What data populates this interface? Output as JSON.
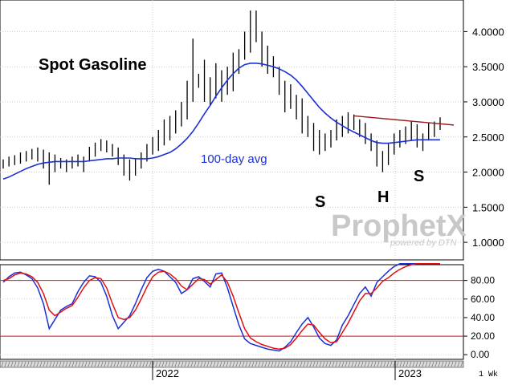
{
  "chart_data": [
    {
      "type": "candlestick",
      "title": "Spot Gasoline",
      "ylim": [
        0.75,
        4.45
      ],
      "yticks": [
        1.0,
        1.5,
        2.0,
        2.5,
        3.0,
        3.5,
        4.0
      ],
      "ytick_labels": [
        "1.0000",
        "1.5000",
        "2.0000",
        "2.5000",
        "3.0000",
        "3.5000",
        "4.0000"
      ],
      "grid": true,
      "bars": [
        [
          2.05,
          2.18
        ],
        [
          2.08,
          2.22
        ],
        [
          2.1,
          2.24
        ],
        [
          2.12,
          2.28
        ],
        [
          2.15,
          2.3
        ],
        [
          2.18,
          2.33
        ],
        [
          2.15,
          2.35
        ],
        [
          2.05,
          2.32
        ],
        [
          1.82,
          2.28
        ],
        [
          2.0,
          2.25
        ],
        [
          2.05,
          2.2
        ],
        [
          2.0,
          2.18
        ],
        [
          2.05,
          2.22
        ],
        [
          2.08,
          2.25
        ],
        [
          2.0,
          2.22
        ],
        [
          2.15,
          2.36
        ],
        [
          2.22,
          2.42
        ],
        [
          2.3,
          2.47
        ],
        [
          2.28,
          2.45
        ],
        [
          2.22,
          2.4
        ],
        [
          2.1,
          2.35
        ],
        [
          1.95,
          2.25
        ],
        [
          1.88,
          2.18
        ],
        [
          1.95,
          2.2
        ],
        [
          2.05,
          2.28
        ],
        [
          2.15,
          2.4
        ],
        [
          2.25,
          2.5
        ],
        [
          2.3,
          2.6
        ],
        [
          2.38,
          2.75
        ],
        [
          2.45,
          2.8
        ],
        [
          2.55,
          2.88
        ],
        [
          2.65,
          3.0
        ],
        [
          2.75,
          3.3
        ],
        [
          3.0,
          3.9
        ],
        [
          3.2,
          3.4
        ],
        [
          3.0,
          3.6
        ],
        [
          2.95,
          3.35
        ],
        [
          3.05,
          3.55
        ],
        [
          3.0,
          3.45
        ],
        [
          3.1,
          3.5
        ],
        [
          3.15,
          3.7
        ],
        [
          3.4,
          3.75
        ],
        [
          3.6,
          4.0
        ],
        [
          3.7,
          4.3
        ],
        [
          3.85,
          4.3
        ],
        [
          3.5,
          4.0
        ],
        [
          3.4,
          3.8
        ],
        [
          3.35,
          3.65
        ],
        [
          3.1,
          3.5
        ],
        [
          2.85,
          3.3
        ],
        [
          2.9,
          3.25
        ],
        [
          2.75,
          3.1
        ],
        [
          2.55,
          3.05
        ],
        [
          2.5,
          2.8
        ],
        [
          2.3,
          2.7
        ],
        [
          2.25,
          2.6
        ],
        [
          2.3,
          2.55
        ],
        [
          2.35,
          2.6
        ],
        [
          2.45,
          2.75
        ],
        [
          2.5,
          2.8
        ],
        [
          2.55,
          2.85
        ],
        [
          2.6,
          2.82
        ],
        [
          2.5,
          2.75
        ],
        [
          2.4,
          2.7
        ],
        [
          2.3,
          2.55
        ],
        [
          2.08,
          2.45
        ],
        [
          2.0,
          2.3
        ],
        [
          2.1,
          2.4
        ],
        [
          2.25,
          2.55
        ],
        [
          2.35,
          2.6
        ],
        [
          2.4,
          2.65
        ],
        [
          2.45,
          2.72
        ],
        [
          2.35,
          2.68
        ],
        [
          2.3,
          2.55
        ],
        [
          2.45,
          2.7
        ],
        [
          2.5,
          2.72
        ],
        [
          2.6,
          2.78
        ]
      ],
      "series": [
        {
          "name": "100-day avg",
          "color": "#1b2fd6",
          "values": [
            1.9,
            1.93,
            1.97,
            2.01,
            2.05,
            2.08,
            2.11,
            2.13,
            2.14,
            2.15,
            2.15,
            2.15,
            2.15,
            2.15,
            2.15,
            2.16,
            2.17,
            2.18,
            2.19,
            2.19,
            2.2,
            2.2,
            2.2,
            2.19,
            2.19,
            2.19,
            2.2,
            2.22,
            2.25,
            2.28,
            2.33,
            2.4,
            2.48,
            2.58,
            2.7,
            2.83,
            2.95,
            3.08,
            3.2,
            3.31,
            3.4,
            3.48,
            3.53,
            3.55,
            3.55,
            3.54,
            3.52,
            3.5,
            3.47,
            3.43,
            3.38,
            3.31,
            3.22,
            3.12,
            3.02,
            2.92,
            2.84,
            2.77,
            2.71,
            2.66,
            2.61,
            2.57,
            2.53,
            2.49,
            2.45,
            2.42,
            2.41,
            2.41,
            2.42,
            2.43,
            2.44,
            2.45,
            2.46,
            2.46,
            2.46,
            2.46,
            2.46
          ]
        }
      ],
      "trendline": {
        "name": "neckline",
        "color": "#9b1c1c",
        "start": 2.8,
        "end": 2.67
      },
      "annotations": [
        "S",
        "H",
        "S",
        "100-day avg"
      ]
    },
    {
      "type": "line",
      "ylim": [
        -5,
        97
      ],
      "yticks": [
        0,
        20,
        40,
        60,
        80
      ],
      "ytick_labels": [
        "0.00",
        "20.00",
        "40.00",
        "60.00",
        "80.00"
      ],
      "reference_lines": [
        20,
        80
      ],
      "series": [
        {
          "name": "fast",
          "color": "#1b2fd6",
          "values": [
            78,
            84,
            88,
            89,
            86,
            82,
            72,
            55,
            28,
            38,
            48,
            52,
            55,
            68,
            78,
            85,
            84,
            78,
            63,
            42,
            28,
            35,
            42,
            55,
            70,
            83,
            90,
            92,
            90,
            84,
            78,
            66,
            70,
            82,
            84,
            79,
            73,
            87,
            88,
            72,
            52,
            32,
            17,
            12,
            10,
            8,
            6,
            5,
            4,
            8,
            14,
            24,
            33,
            40,
            30,
            18,
            12,
            10,
            16,
            32,
            42,
            54,
            66,
            73,
            63,
            78,
            84,
            90,
            95,
            98,
            98,
            98,
            98,
            98,
            98,
            98,
            98
          ]
        },
        {
          "name": "slow",
          "color": "#e01010",
          "values": [
            80,
            82,
            86,
            88,
            87,
            84,
            78,
            66,
            48,
            42,
            46,
            50,
            53,
            62,
            72,
            80,
            83,
            82,
            72,
            55,
            40,
            38,
            40,
            48,
            60,
            73,
            84,
            89,
            90,
            87,
            82,
            74,
            70,
            76,
            82,
            81,
            76,
            81,
            86,
            78,
            63,
            45,
            28,
            18,
            14,
            11,
            9,
            7,
            6,
            7,
            11,
            18,
            26,
            33,
            32,
            24,
            17,
            13,
            14,
            24,
            34,
            46,
            58,
            66,
            66,
            72,
            79,
            83,
            88,
            92,
            95,
            97,
            98,
            98,
            98,
            98,
            98
          ]
        }
      ]
    }
  ],
  "x_axis": {
    "labels": [
      "2022",
      "2023"
    ],
    "period": "1 Wk"
  },
  "watermark": {
    "brand": "ProphetX",
    "sub": "powered by DTN"
  }
}
